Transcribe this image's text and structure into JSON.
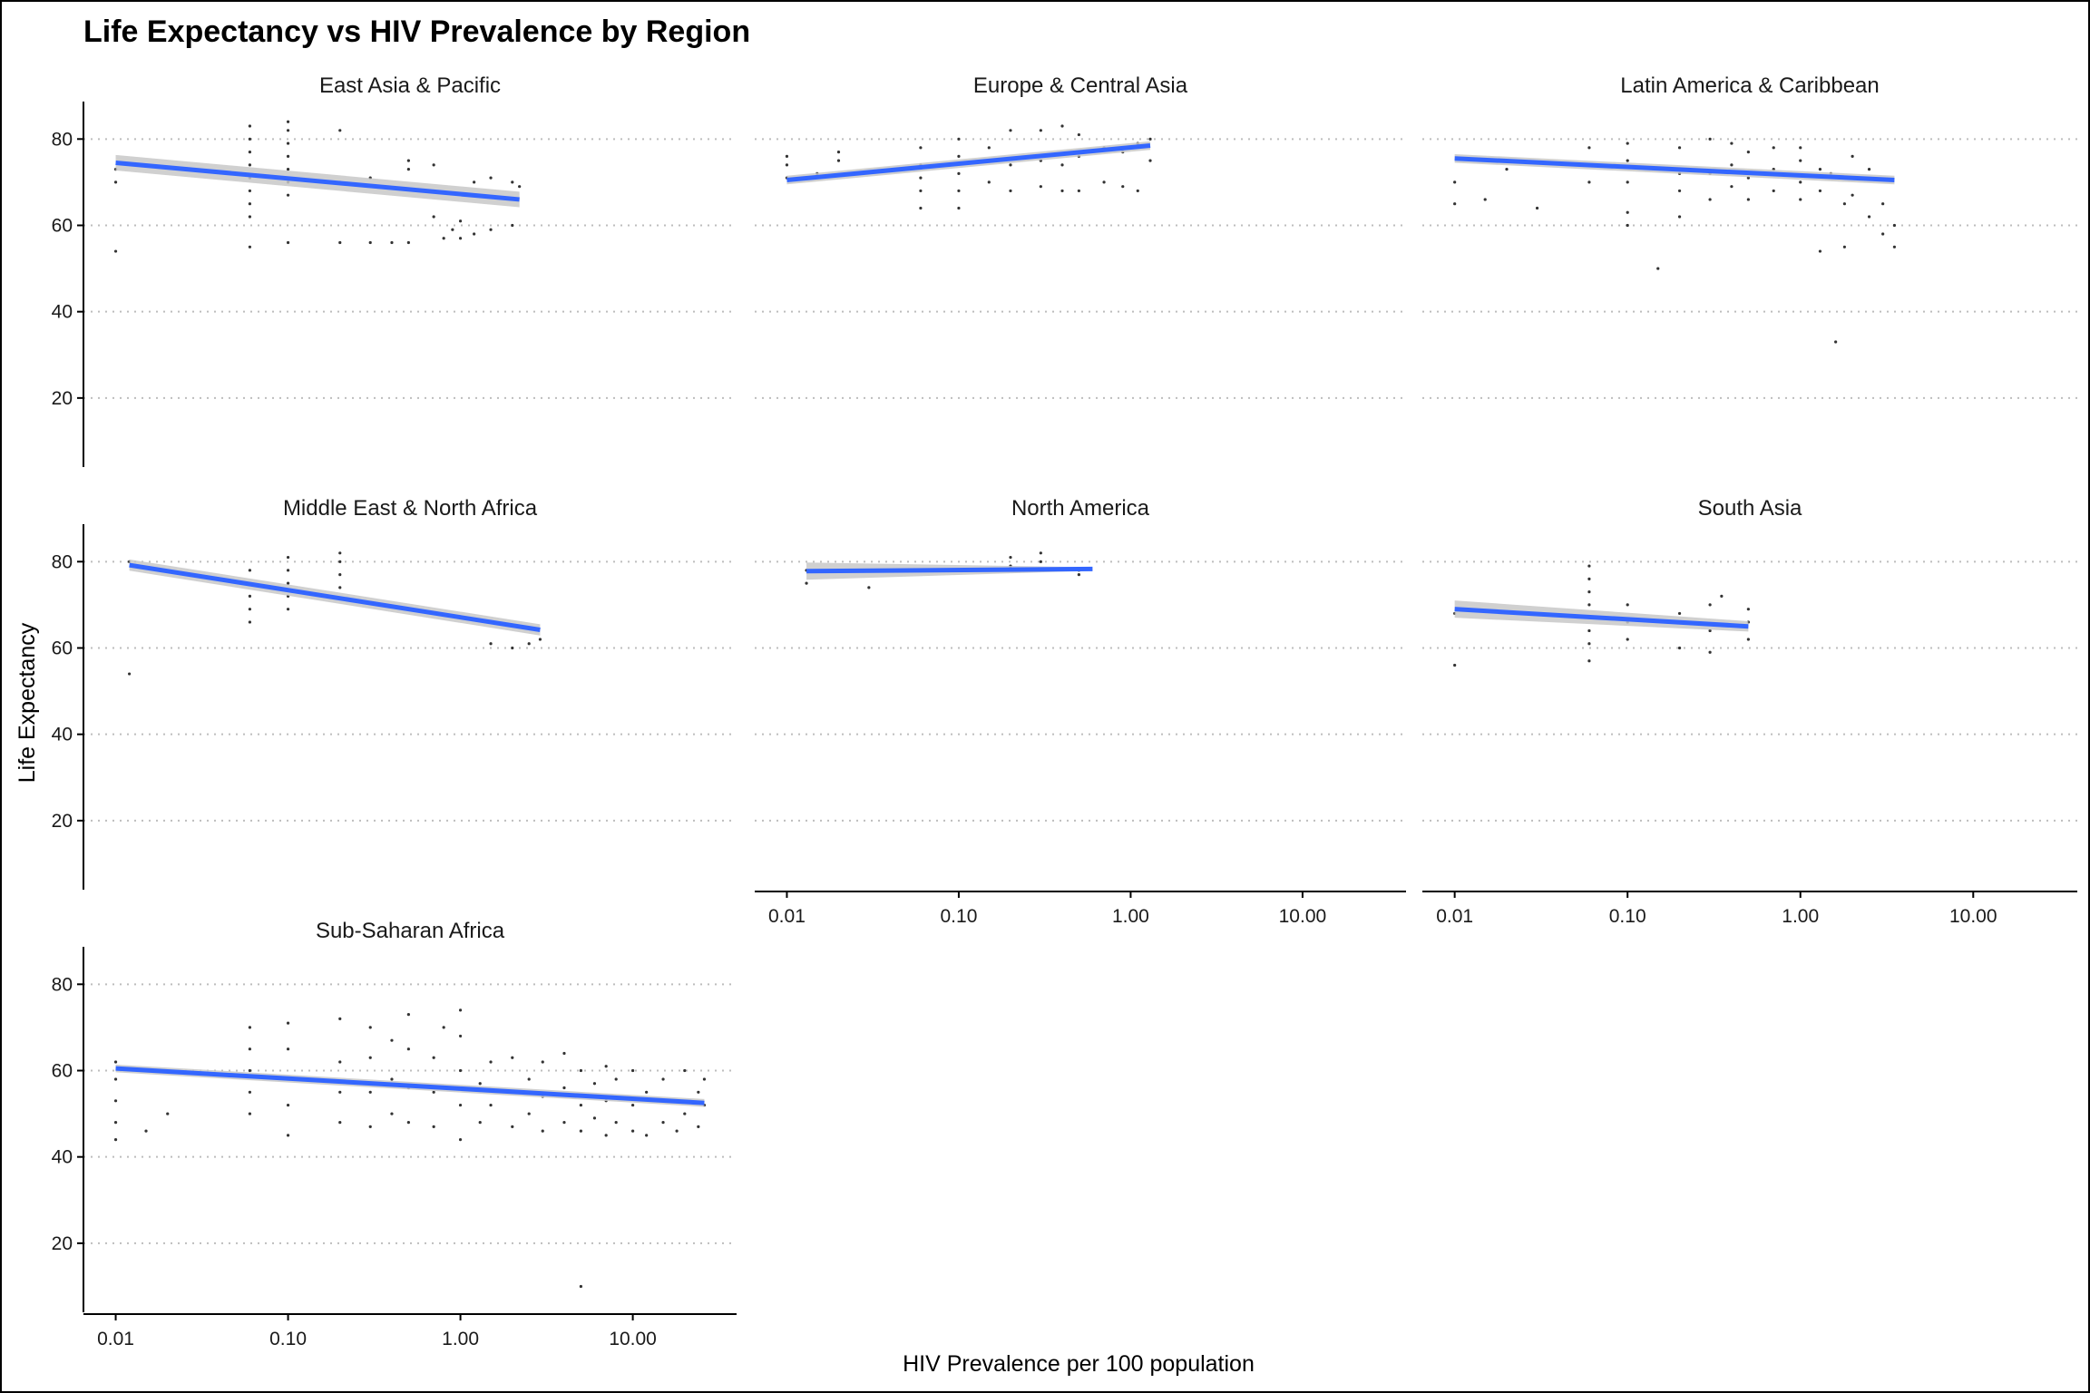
{
  "chart_data": {
    "type": "scatter",
    "title": "Life Expectancy  vs HIV Prevalence by Region",
    "xlabel": "HIV Prevalence per 100 population",
    "ylabel": "Life Expectancy",
    "x_scale": "log10",
    "xlim": [
      0.0065,
      40
    ],
    "ylim": [
      4,
      87
    ],
    "x_ticks": [
      0.01,
      0.1,
      1,
      10
    ],
    "x_tick_labels": [
      "0.01",
      "0.10",
      "1.00",
      "10.00"
    ],
    "y_ticks": [
      20,
      40,
      60,
      80
    ],
    "y_tick_labels": [
      "20",
      "40",
      "60",
      "80"
    ],
    "grid": "horizontal dotted",
    "colors": {
      "trend": "#3366ff",
      "band": "#c8c8c8",
      "points": "#333333"
    },
    "panels": [
      {
        "region": "East Asia & Pacific",
        "trend": {
          "x": [
            0.01,
            2.2
          ],
          "y": [
            74.5,
            66
          ]
        },
        "band_halfwidth": [
          1.8,
          1.8
        ],
        "points": [
          [
            0.01,
            54
          ],
          [
            0.01,
            70
          ],
          [
            0.01,
            73
          ],
          [
            0.06,
            55
          ],
          [
            0.06,
            62
          ],
          [
            0.06,
            65
          ],
          [
            0.06,
            68
          ],
          [
            0.06,
            71
          ],
          [
            0.06,
            74
          ],
          [
            0.06,
            77
          ],
          [
            0.06,
            80
          ],
          [
            0.06,
            83
          ],
          [
            0.1,
            56
          ],
          [
            0.1,
            67
          ],
          [
            0.1,
            70
          ],
          [
            0.1,
            73
          ],
          [
            0.1,
            76
          ],
          [
            0.1,
            79
          ],
          [
            0.1,
            82
          ],
          [
            0.1,
            84
          ],
          [
            0.2,
            56
          ],
          [
            0.2,
            70
          ],
          [
            0.2,
            82
          ],
          [
            0.3,
            56
          ],
          [
            0.3,
            71
          ],
          [
            0.4,
            56
          ],
          [
            0.5,
            56
          ],
          [
            0.5,
            73
          ],
          [
            0.5,
            75
          ],
          [
            0.7,
            62
          ],
          [
            0.7,
            74
          ],
          [
            0.8,
            57
          ],
          [
            0.9,
            59
          ],
          [
            1,
            57
          ],
          [
            1,
            61
          ],
          [
            1.2,
            58
          ],
          [
            1.2,
            70
          ],
          [
            1.5,
            59
          ],
          [
            1.5,
            71
          ],
          [
            2,
            60
          ],
          [
            2,
            70
          ],
          [
            2.2,
            69
          ]
        ]
      },
      {
        "region": "Europe & Central Asia",
        "trend": {
          "x": [
            0.01,
            1.3
          ],
          "y": [
            70.5,
            78.5
          ]
        },
        "band_halfwidth": [
          1.0,
          1.0
        ],
        "points": [
          [
            0.01,
            71
          ],
          [
            0.01,
            74
          ],
          [
            0.01,
            76
          ],
          [
            0.015,
            72
          ],
          [
            0.02,
            75
          ],
          [
            0.02,
            77
          ],
          [
            0.06,
            64
          ],
          [
            0.06,
            68
          ],
          [
            0.06,
            71
          ],
          [
            0.06,
            74
          ],
          [
            0.06,
            78
          ],
          [
            0.1,
            64
          ],
          [
            0.1,
            68
          ],
          [
            0.1,
            72
          ],
          [
            0.1,
            76
          ],
          [
            0.1,
            80
          ],
          [
            0.15,
            70
          ],
          [
            0.15,
            78
          ],
          [
            0.2,
            68
          ],
          [
            0.2,
            74
          ],
          [
            0.2,
            82
          ],
          [
            0.3,
            69
          ],
          [
            0.3,
            75
          ],
          [
            0.3,
            82
          ],
          [
            0.4,
            68
          ],
          [
            0.4,
            74
          ],
          [
            0.4,
            83
          ],
          [
            0.5,
            68
          ],
          [
            0.5,
            76
          ],
          [
            0.5,
            81
          ],
          [
            0.7,
            70
          ],
          [
            0.7,
            78
          ],
          [
            0.9,
            69
          ],
          [
            0.9,
            77
          ],
          [
            1.1,
            68
          ],
          [
            1.1,
            79
          ],
          [
            1.3,
            75
          ],
          [
            1.3,
            80
          ]
        ]
      },
      {
        "region": "Latin America & Caribbean",
        "trend": {
          "x": [
            0.01,
            3.5
          ],
          "y": [
            75.5,
            70.5
          ]
        },
        "band_halfwidth": [
          1.0,
          1.0
        ],
        "points": [
          [
            0.01,
            65
          ],
          [
            0.01,
            70
          ],
          [
            0.015,
            66
          ],
          [
            0.02,
            73
          ],
          [
            0.03,
            64
          ],
          [
            0.06,
            70
          ],
          [
            0.06,
            74
          ],
          [
            0.06,
            78
          ],
          [
            0.1,
            60
          ],
          [
            0.1,
            63
          ],
          [
            0.1,
            70
          ],
          [
            0.1,
            75
          ],
          [
            0.1,
            79
          ],
          [
            0.15,
            50
          ],
          [
            0.2,
            62
          ],
          [
            0.2,
            68
          ],
          [
            0.2,
            72
          ],
          [
            0.2,
            78
          ],
          [
            0.3,
            66
          ],
          [
            0.3,
            72
          ],
          [
            0.3,
            80
          ],
          [
            0.4,
            69
          ],
          [
            0.4,
            74
          ],
          [
            0.4,
            79
          ],
          [
            0.5,
            66
          ],
          [
            0.5,
            71
          ],
          [
            0.5,
            77
          ],
          [
            0.7,
            68
          ],
          [
            0.7,
            73
          ],
          [
            0.7,
            78
          ],
          [
            1,
            66
          ],
          [
            1,
            70
          ],
          [
            1,
            75
          ],
          [
            1,
            78
          ],
          [
            1.3,
            54
          ],
          [
            1.3,
            68
          ],
          [
            1.3,
            73
          ],
          [
            1.5,
            72
          ],
          [
            1.8,
            55
          ],
          [
            1.8,
            65
          ],
          [
            2,
            67
          ],
          [
            2,
            71
          ],
          [
            2,
            76
          ],
          [
            2.5,
            62
          ],
          [
            2.5,
            73
          ],
          [
            3,
            58
          ],
          [
            3,
            65
          ],
          [
            3.5,
            55
          ],
          [
            3.5,
            60
          ],
          [
            1.6,
            33
          ]
        ]
      },
      {
        "region": "Middle East & North Africa",
        "trend": {
          "x": [
            0.012,
            2.9
          ],
          "y": [
            79.2,
            64.2
          ]
        },
        "band_halfwidth": [
          1.3,
          1.3
        ],
        "points": [
          [
            0.012,
            54
          ],
          [
            0.012,
            80
          ],
          [
            0.06,
            66
          ],
          [
            0.06,
            69
          ],
          [
            0.06,
            72
          ],
          [
            0.06,
            75
          ],
          [
            0.06,
            78
          ],
          [
            0.1,
            69
          ],
          [
            0.1,
            72
          ],
          [
            0.1,
            75
          ],
          [
            0.1,
            78
          ],
          [
            0.1,
            81
          ],
          [
            0.2,
            74
          ],
          [
            0.2,
            77
          ],
          [
            0.2,
            80
          ],
          [
            0.2,
            82
          ],
          [
            1.5,
            61
          ],
          [
            2,
            60
          ],
          [
            2.5,
            61
          ],
          [
            2.9,
            62
          ]
        ]
      },
      {
        "region": "North America",
        "trend": {
          "x": [
            0.013,
            0.6
          ],
          "y": [
            77.8,
            78.3
          ]
        },
        "band_halfwidth": [
          2.0,
          0.4
        ],
        "points": [
          [
            0.013,
            75
          ],
          [
            0.013,
            78
          ],
          [
            0.03,
            74
          ],
          [
            0.2,
            79
          ],
          [
            0.2,
            81
          ],
          [
            0.3,
            80
          ],
          [
            0.3,
            82
          ],
          [
            0.5,
            77
          ],
          [
            0.5,
            78
          ]
        ]
      },
      {
        "region": "South Asia",
        "trend": {
          "x": [
            0.01,
            0.5
          ],
          "y": [
            69,
            65
          ]
        },
        "band_halfwidth": [
          2.0,
          1.2
        ],
        "points": [
          [
            0.01,
            56
          ],
          [
            0.01,
            68
          ],
          [
            0.06,
            57
          ],
          [
            0.06,
            61
          ],
          [
            0.06,
            64
          ],
          [
            0.06,
            67
          ],
          [
            0.06,
            70
          ],
          [
            0.06,
            73
          ],
          [
            0.06,
            76
          ],
          [
            0.06,
            79
          ],
          [
            0.1,
            62
          ],
          [
            0.1,
            66
          ],
          [
            0.1,
            70
          ],
          [
            0.2,
            60
          ],
          [
            0.2,
            68
          ],
          [
            0.3,
            59
          ],
          [
            0.3,
            64
          ],
          [
            0.3,
            70
          ],
          [
            0.35,
            72
          ],
          [
            0.5,
            62
          ],
          [
            0.5,
            66
          ],
          [
            0.5,
            69
          ]
        ]
      },
      {
        "region": "Sub-Saharan Africa",
        "trend": {
          "x": [
            0.01,
            26
          ],
          "y": [
            60.5,
            52.5
          ]
        },
        "band_halfwidth": [
          0.9,
          0.9
        ],
        "points": [
          [
            0.01,
            44
          ],
          [
            0.01,
            48
          ],
          [
            0.01,
            53
          ],
          [
            0.01,
            58
          ],
          [
            0.01,
            62
          ],
          [
            0.015,
            46
          ],
          [
            0.02,
            50
          ],
          [
            0.06,
            50
          ],
          [
            0.06,
            55
          ],
          [
            0.06,
            60
          ],
          [
            0.06,
            65
          ],
          [
            0.06,
            70
          ],
          [
            0.1,
            45
          ],
          [
            0.1,
            52
          ],
          [
            0.1,
            58
          ],
          [
            0.1,
            65
          ],
          [
            0.1,
            71
          ],
          [
            0.2,
            48
          ],
          [
            0.2,
            55
          ],
          [
            0.2,
            62
          ],
          [
            0.2,
            72
          ],
          [
            0.3,
            47
          ],
          [
            0.3,
            55
          ],
          [
            0.3,
            63
          ],
          [
            0.3,
            70
          ],
          [
            0.4,
            50
          ],
          [
            0.4,
            58
          ],
          [
            0.4,
            67
          ],
          [
            0.5,
            48
          ],
          [
            0.5,
            56
          ],
          [
            0.5,
            65
          ],
          [
            0.5,
            73
          ],
          [
            0.7,
            47
          ],
          [
            0.7,
            55
          ],
          [
            0.7,
            63
          ],
          [
            0.8,
            70
          ],
          [
            1,
            44
          ],
          [
            1,
            52
          ],
          [
            1,
            60
          ],
          [
            1,
            68
          ],
          [
            1,
            74
          ],
          [
            1.3,
            48
          ],
          [
            1.3,
            57
          ],
          [
            1.5,
            52
          ],
          [
            1.5,
            62
          ],
          [
            2,
            47
          ],
          [
            2,
            55
          ],
          [
            2,
            63
          ],
          [
            2.5,
            50
          ],
          [
            2.5,
            58
          ],
          [
            3,
            46
          ],
          [
            3,
            54
          ],
          [
            3,
            62
          ],
          [
            4,
            48
          ],
          [
            4,
            56
          ],
          [
            4,
            64
          ],
          [
            5,
            10
          ],
          [
            5,
            46
          ],
          [
            5,
            52
          ],
          [
            5,
            60
          ],
          [
            6,
            49
          ],
          [
            6,
            57
          ],
          [
            7,
            45
          ],
          [
            7,
            53
          ],
          [
            7,
            61
          ],
          [
            8,
            48
          ],
          [
            8,
            58
          ],
          [
            10,
            46
          ],
          [
            10,
            52
          ],
          [
            10,
            60
          ],
          [
            12,
            45
          ],
          [
            12,
            55
          ],
          [
            15,
            48
          ],
          [
            15,
            58
          ],
          [
            18,
            46
          ],
          [
            18,
            53
          ],
          [
            20,
            50
          ],
          [
            20,
            60
          ],
          [
            24,
            47
          ],
          [
            24,
            55
          ],
          [
            26,
            52
          ],
          [
            26,
            58
          ]
        ]
      }
    ]
  }
}
